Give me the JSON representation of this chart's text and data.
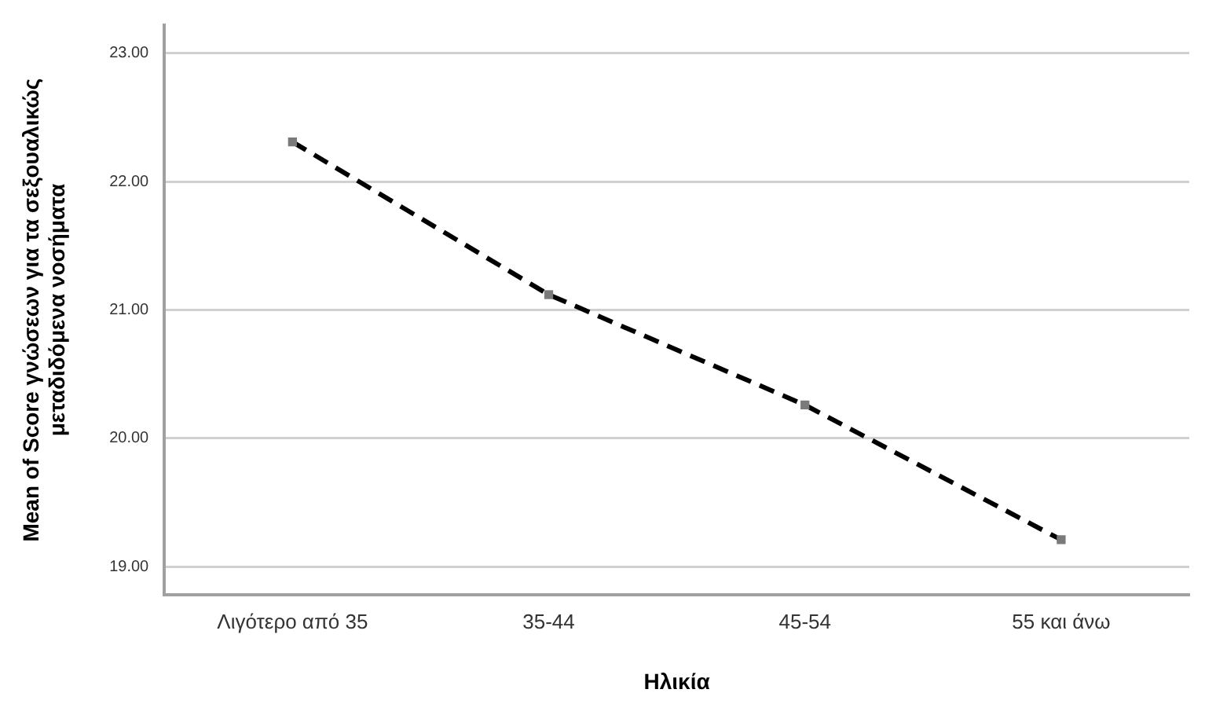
{
  "chart_data": {
    "type": "line",
    "xlabel": "Ηλικία",
    "ylabel": "Mean of Score γνώσεων για τα σεξουαλικώς\nμεταδιδόμενα νοσήματα",
    "categories": [
      "Λιγότερο από 35",
      "35-44",
      "45-54",
      "55 και άνω"
    ],
    "series": [
      {
        "color": "#000000",
        "values": [
          22.31,
          21.12,
          20.26,
          19.21
        ]
      }
    ],
    "ylim": [
      18.78,
      23.22
    ],
    "yticks": [
      {
        "value": 19,
        "label": "19.00"
      },
      {
        "value": 20,
        "label": "20.00"
      },
      {
        "value": 21,
        "label": "21.00"
      },
      {
        "value": 22,
        "label": "22.00"
      },
      {
        "value": 23,
        "label": "23.00"
      }
    ],
    "grid": "y",
    "marker": "square",
    "line_style": "dashed"
  }
}
